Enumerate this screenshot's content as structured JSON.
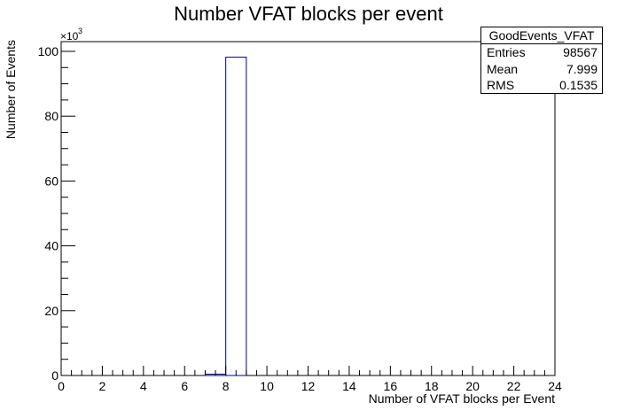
{
  "chart_data": {
    "type": "bar",
    "title": "Number VFAT blocks per event",
    "xlabel": "Number of VFAT blocks per Event",
    "ylabel": "Number of Events",
    "y_multiplier_label": "×10",
    "y_multiplier_exponent": "3",
    "xlim": [
      0,
      24
    ],
    "ylim": [
      0,
      103
    ],
    "x_ticks": [
      "0",
      "2",
      "4",
      "6",
      "8",
      "10",
      "12",
      "14",
      "16",
      "18",
      "20",
      "22",
      "24"
    ],
    "y_ticks": [
      "0",
      "20",
      "40",
      "60",
      "80",
      "100"
    ],
    "bins": [
      {
        "x0": 7,
        "x1": 8,
        "value": 0.4
      },
      {
        "x0": 8,
        "x1": 9,
        "value": 98.2
      }
    ],
    "line_color": "#000080",
    "grid": false,
    "stats": {
      "name": "GoodEvents_VFAT",
      "rows": [
        {
          "label": "Entries",
          "value": "98567"
        },
        {
          "label": "Mean",
          "value": "7.999"
        },
        {
          "label": "RMS",
          "value": "0.1535"
        }
      ]
    }
  }
}
